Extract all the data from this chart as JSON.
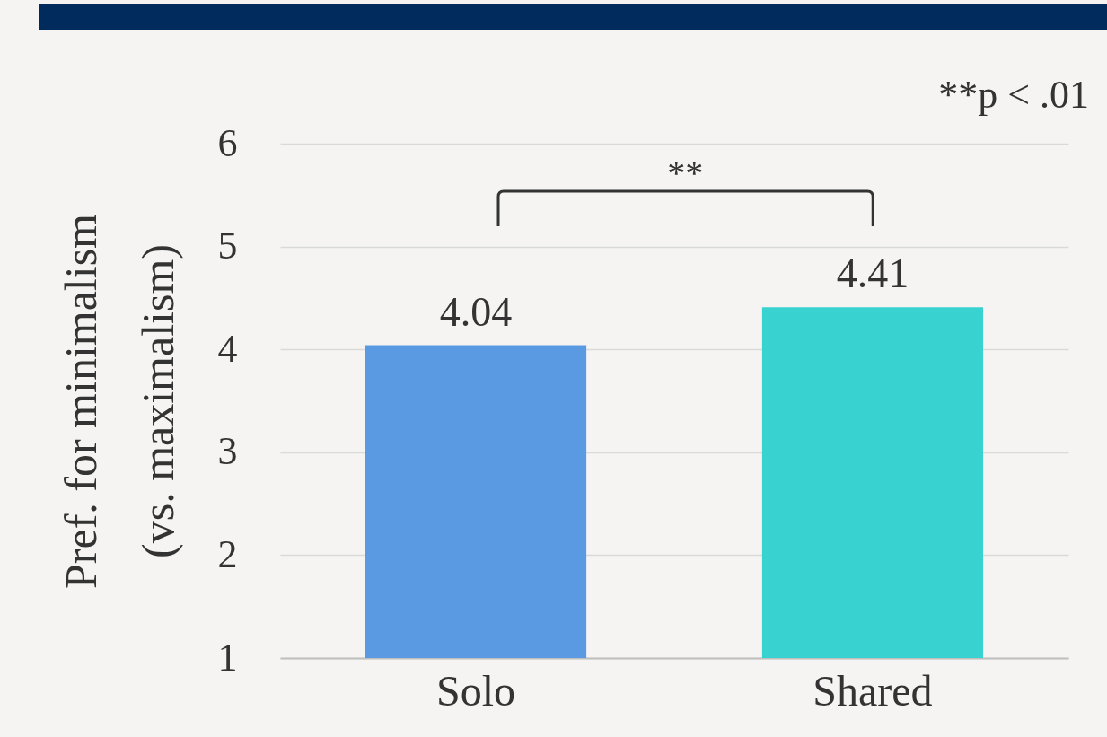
{
  "chart_data": {
    "type": "bar",
    "categories": [
      "Solo",
      "Shared"
    ],
    "values": [
      4.04,
      4.41
    ],
    "colors": [
      "#5a9ae2",
      "#38d3d0"
    ],
    "ylabel": "Pref.  for minimalism\n(vs. maximalism)",
    "ylim": [
      1,
      6
    ],
    "yticks": [
      1,
      2,
      3,
      4,
      5,
      6
    ],
    "grid": "y",
    "data_labels": true,
    "annotations": [
      "**",
      "**p < .01"
    ]
  }
}
